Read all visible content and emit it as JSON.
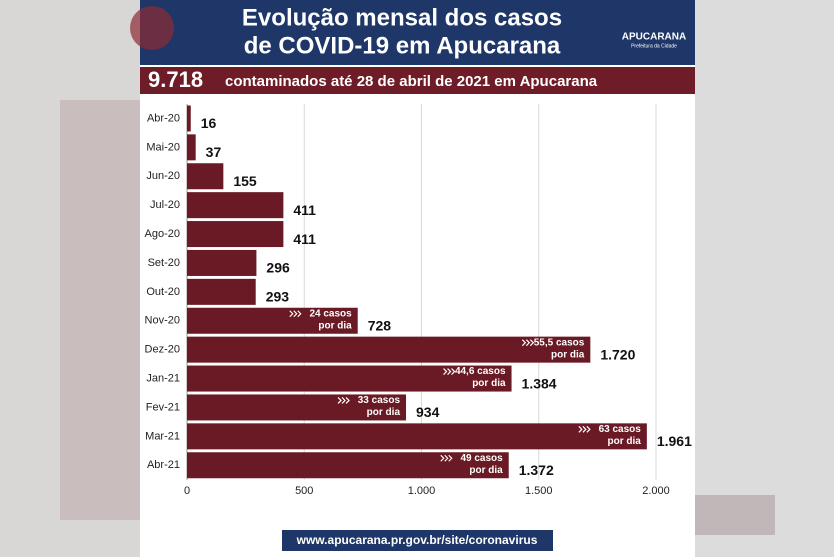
{
  "chart_data": {
    "type": "bar",
    "orientation": "horizontal",
    "title_lines": [
      "Evolução mensal dos casos",
      "de COVID-19 em Apucarana"
    ],
    "logo": {
      "name": "APUCARANA",
      "subtitle": "Prefeitura da Cidade"
    },
    "highlight": {
      "value": "9.718",
      "text": "contaminados até 28 de abril de 2021 em Apucarana"
    },
    "categories": [
      "Abr-20",
      "Mai-20",
      "Jun-20",
      "Jul-20",
      "Ago-20",
      "Set-20",
      "Out-20",
      "Nov-20",
      "Dez-20",
      "Jan-21",
      "Fev-21",
      "Mar-21",
      "Abr-21"
    ],
    "values": [
      16,
      37,
      155,
      411,
      411,
      296,
      293,
      728,
      1720,
      1384,
      934,
      1961,
      1372
    ],
    "value_labels": [
      "16",
      "37",
      "155",
      "411",
      "411",
      "296",
      "293",
      "728",
      "1.720",
      "1.384",
      "934",
      "1.961",
      "1.372"
    ],
    "rate_labels": [
      null,
      null,
      null,
      null,
      null,
      null,
      null,
      [
        "24 casos",
        "por dia"
      ],
      [
        "55,5 casos",
        "por dia"
      ],
      [
        "44,6 casos",
        "por dia"
      ],
      [
        "33 casos",
        "por dia"
      ],
      [
        "63 casos",
        "por dia"
      ],
      [
        "49 casos",
        "por dia"
      ]
    ],
    "color": "#6a1a24",
    "xlim": [
      0,
      2000
    ],
    "xticks": [
      0,
      500,
      {
        "value": 1000,
        "label": "1.000"
      },
      {
        "value": 1500,
        "label": "1.500"
      },
      {
        "value": 2000,
        "label": "2.000"
      }
    ],
    "grid": true,
    "footer": "www.apucarana.pr.gov.br/site/coronavirus"
  }
}
